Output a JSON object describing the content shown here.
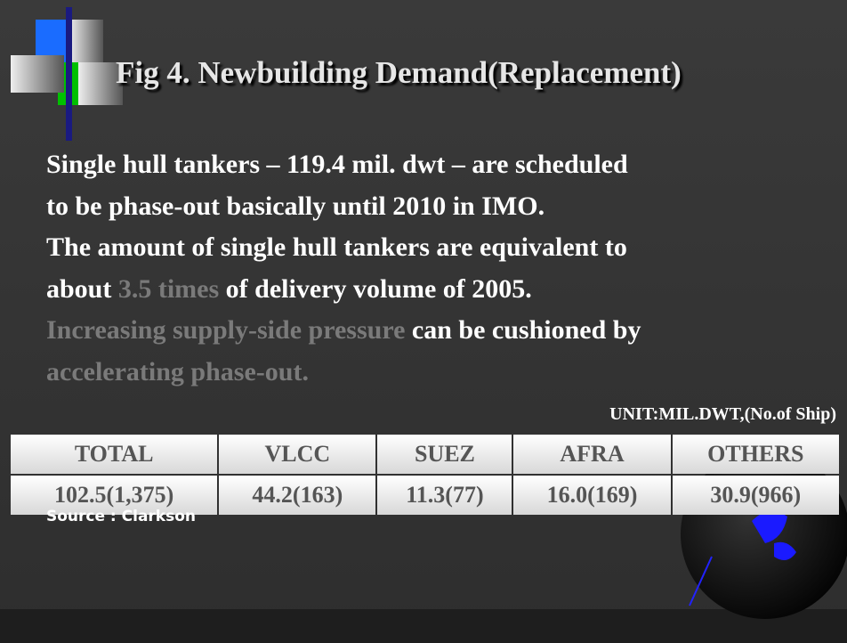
{
  "title": "Fig 4. Newbuilding Demand(Replacement)",
  "body_lines": [
    [
      {
        "text": "Single hull tankers – 119.4 mil. dwt – are scheduled",
        "highlight": false
      }
    ],
    [
      {
        "text": "to be phase-out basically until 2010 in IMO.",
        "highlight": false
      }
    ],
    [
      {
        "text": "The amount of single hull tankers are equivalent to",
        "highlight": false
      }
    ],
    [
      {
        "text": "about ",
        "highlight": false
      },
      {
        "text": "3.5 times",
        "highlight": true
      },
      {
        "text": " of delivery volume of 2005.",
        "highlight": false
      }
    ],
    [
      {
        "text": "Increasing supply-side pressure",
        "highlight": true
      },
      {
        "text": " can be cushioned by",
        "highlight": false
      }
    ],
    [
      {
        "text": "accelerating phase-out.",
        "highlight": true
      }
    ]
  ],
  "unit": "UNIT:MIL.DWT,(No.of Ship)",
  "table": {
    "header": [
      "TOTAL",
      "VLCC",
      "SUEZ",
      "AFRA",
      "OTHERS"
    ],
    "rows": [
      [
        "102.5(1,375)",
        "44.2(163)",
        "11.3(77)",
        "16.0(169)",
        "30.9(966)"
      ]
    ]
  },
  "source": "Source : Clarkson"
}
